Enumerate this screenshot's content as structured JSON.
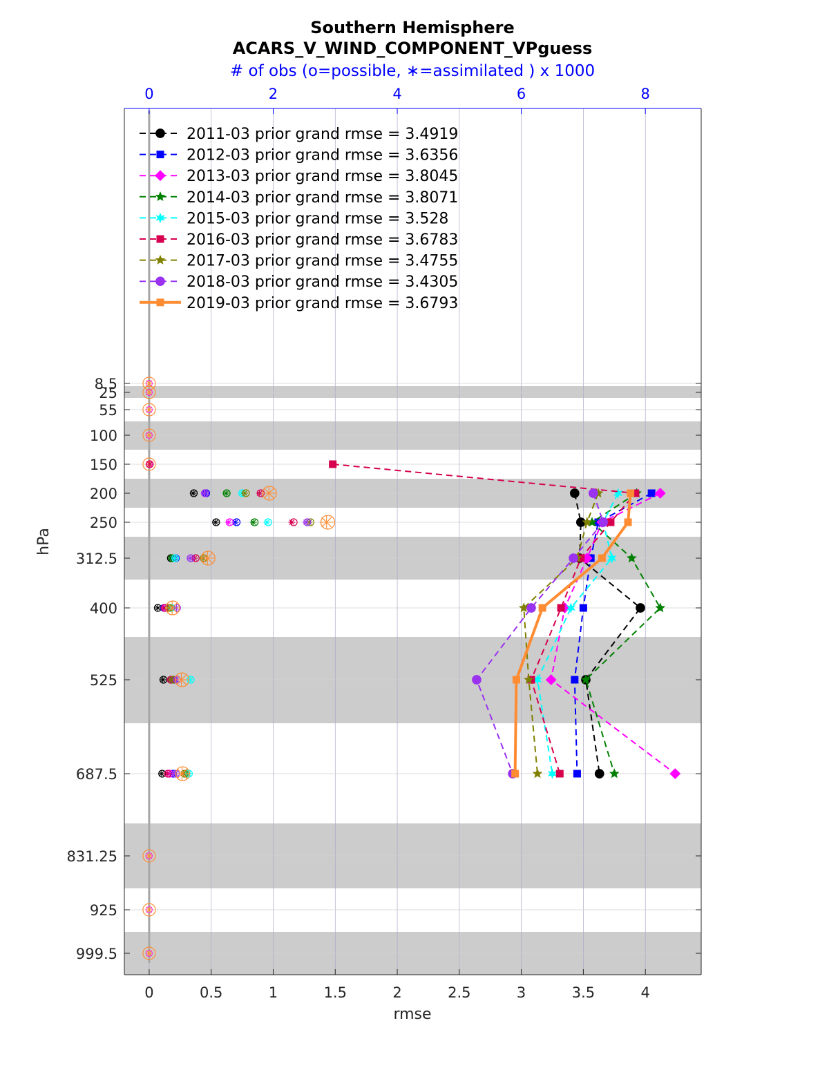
{
  "chart_data": {
    "type": "line",
    "title": "Southern Hemisphere",
    "subtitle": "ACARS_V_WIND_COMPONENT_VPguess",
    "top_axis_label": "# of obs (o=possible, ∗=assimilated ) x 1000",
    "xlabel": "rmse",
    "ylabel": "hPa",
    "xlim": [
      -0.2,
      4.45
    ],
    "x_ticks": [
      0,
      0.5,
      1,
      1.5,
      2,
      2.5,
      3,
      3.5,
      4
    ],
    "x_tick_labels": [
      "0",
      "0.5",
      "1",
      "1.5",
      "2",
      "2.5",
      "3",
      "3.5",
      "4"
    ],
    "top_xlim": [
      -0.4,
      8.9
    ],
    "top_ticks": [
      0,
      2,
      4,
      6,
      8
    ],
    "top_tick_labels": [
      "0",
      "2",
      "4",
      "6",
      "8"
    ],
    "y_axis_reversed": true,
    "levels": [
      8.5,
      25,
      55,
      100,
      150,
      200,
      250,
      312.5,
      400,
      525,
      687.5,
      831.25,
      925,
      999.5
    ],
    "level_labels": [
      "8.5",
      "25",
      "55",
      "100",
      "150",
      "200",
      "250",
      "312.5",
      "400",
      "525",
      "687.5",
      "831.25",
      "925",
      "999.5"
    ],
    "grid": true,
    "legend_position": "top-left",
    "series": [
      {
        "name": "2011-03 prior grand rmse = 3.4919",
        "color": "#000000",
        "marker": "circle",
        "line": "dashed",
        "levels": [
          200,
          250,
          312.5,
          400,
          525,
          687.5
        ],
        "values": [
          3.43,
          3.48,
          3.47,
          3.96,
          3.52,
          3.63
        ],
        "obs_possible": [
          0.72,
          1.08,
          0.35,
          0.14,
          0.23,
          0.21
        ],
        "obs_assimilated": [
          0.71,
          1.07,
          0.35,
          0.14,
          0.22,
          0.2
        ]
      },
      {
        "name": "2012-03 prior grand rmse = 3.6356",
        "color": "#0000ff",
        "marker": "square",
        "line": "dashed",
        "levels": [
          200,
          250,
          312.5,
          400,
          525,
          687.5
        ],
        "values": [
          4.05,
          3.62,
          3.56,
          3.5,
          3.43,
          3.45
        ],
        "obs_possible": [
          0.92,
          1.41,
          0.43,
          0.24,
          0.4,
          0.39
        ],
        "obs_assimilated": [
          0.91,
          1.39,
          0.42,
          0.23,
          0.39,
          0.38
        ]
      },
      {
        "name": "2013-03 prior grand rmse = 3.8045",
        "color": "#ff00ff",
        "marker": "diamond",
        "line": "dashed",
        "levels": [
          200,
          250,
          312.5,
          400,
          525,
          687.5
        ],
        "values": [
          4.12,
          3.65,
          3.53,
          3.35,
          3.24,
          4.24
        ],
        "obs_possible": [
          0.9,
          1.3,
          0.42,
          0.27,
          0.36,
          0.33
        ],
        "obs_assimilated": [
          0.89,
          1.28,
          0.41,
          0.26,
          0.35,
          0.32
        ]
      },
      {
        "name": "2014-03 prior grand rmse = 3.8071",
        "color": "#008000",
        "marker": "star",
        "line": "dashed",
        "levels": [
          200,
          250,
          312.5,
          400,
          525,
          687.5
        ],
        "values": [
          3.93,
          3.57,
          3.89,
          4.12,
          3.52,
          3.75
        ],
        "obs_possible": [
          1.25,
          1.7,
          0.37,
          0.35,
          0.36,
          0.6
        ],
        "obs_assimilated": [
          1.24,
          1.68,
          0.36,
          0.34,
          0.35,
          0.59
        ]
      },
      {
        "name": "2015-03 prior grand rmse = 3.528",
        "color": "#00ffff",
        "marker": "hexagram",
        "line": "dashed",
        "levels": [
          200,
          250,
          312.5,
          400,
          525,
          687.5
        ],
        "values": [
          3.78,
          3.66,
          3.73,
          3.4,
          3.13,
          3.25
        ],
        "obs_possible": [
          1.5,
          1.92,
          0.42,
          0.36,
          0.67,
          0.64
        ],
        "obs_assimilated": [
          1.49,
          1.9,
          0.41,
          0.35,
          0.66,
          0.63
        ]
      },
      {
        "name": "2016-03 prior grand rmse = 3.6783",
        "color": "#d6004f",
        "marker": "square",
        "line": "dashed",
        "levels": [
          150,
          200,
          250,
          312.5,
          400,
          525,
          687.5
        ],
        "values": [
          1.48,
          3.92,
          3.72,
          3.48,
          3.32,
          3.08,
          3.31
        ],
        "obs_possible": [
          0.01,
          1.8,
          2.33,
          0.75,
          0.25,
          0.35,
          0.3
        ],
        "obs_assimilated": [
          0.01,
          1.78,
          2.3,
          0.73,
          0.24,
          0.34,
          0.29
        ]
      },
      {
        "name": "2017-03 prior grand rmse = 3.4755",
        "color": "#808000",
        "marker": "star",
        "line": "dashed",
        "levels": [
          200,
          250,
          312.5,
          400,
          525,
          687.5
        ],
        "values": [
          3.62,
          3.53,
          3.45,
          3.02,
          3.06,
          3.13
        ],
        "obs_possible": [
          1.56,
          2.6,
          0.88,
          0.32,
          0.39,
          0.57
        ],
        "obs_assimilated": [
          1.54,
          2.58,
          0.87,
          0.31,
          0.38,
          0.56
        ]
      },
      {
        "name": "2018-03 prior grand rmse = 3.4305",
        "color": "#9a32f0",
        "marker": "circle",
        "line": "dashed",
        "levels": [
          200,
          250,
          312.5,
          400,
          525,
          687.5
        ],
        "values": [
          3.58,
          3.66,
          3.42,
          3.08,
          2.64,
          2.93
        ],
        "obs_possible": [
          0.9,
          2.55,
          0.67,
          0.45,
          0.45,
          0.43
        ],
        "obs_assimilated": [
          0.89,
          2.53,
          0.66,
          0.44,
          0.44,
          0.42
        ]
      },
      {
        "name": "2019-03 prior grand rmse = 3.6793",
        "color": "#ff8c32",
        "marker": "square",
        "line": "solid",
        "levels": [
          200,
          250,
          312.5,
          400,
          525,
          687.5
        ],
        "values": [
          3.88,
          3.86,
          3.65,
          3.17,
          2.96,
          2.95
        ],
        "obs_possible": [
          1.94,
          2.88,
          0.95,
          0.38,
          0.53,
          0.54
        ],
        "obs_assimilated": [
          1.93,
          2.86,
          0.94,
          0.37,
          0.52,
          0.53
        ]
      }
    ]
  }
}
